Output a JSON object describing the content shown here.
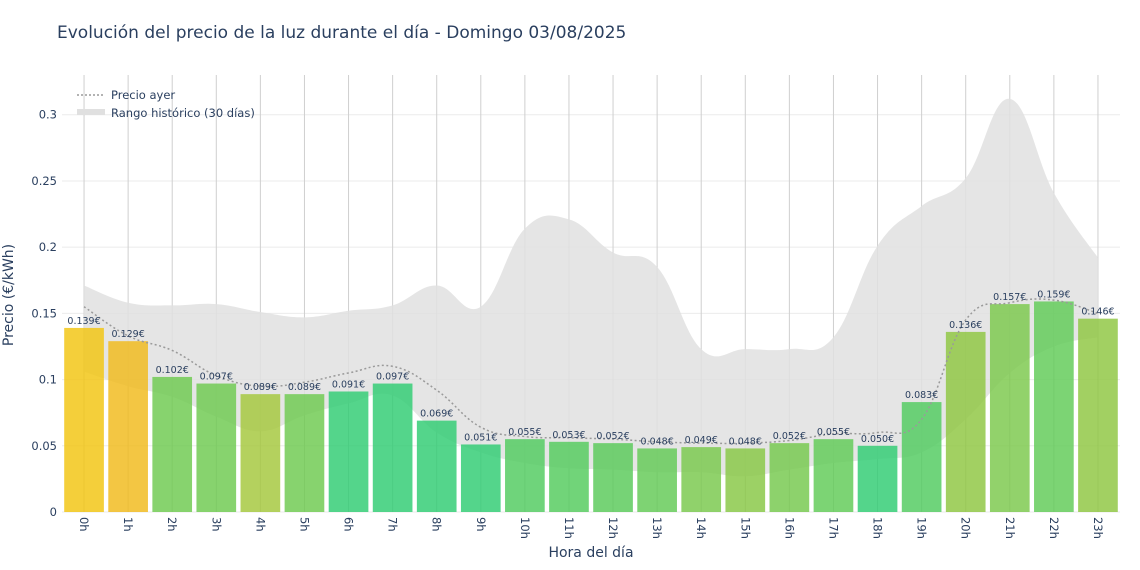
{
  "chart_data": {
    "type": "bar",
    "title": "Evolución del precio de la luz durante el día - Domingo 03/08/2025",
    "xlabel": "Hora del día",
    "ylabel": "Precio (€/kWh)",
    "ylim": [
      0,
      0.33
    ],
    "yticks": [
      0,
      0.05,
      0.1,
      0.15,
      0.2,
      0.25,
      0.3
    ],
    "ytick_labels": [
      "0",
      "0.05",
      "0.1",
      "0.15",
      "0.2",
      "0.25",
      "0.3"
    ],
    "categories": [
      "0h",
      "1h",
      "2h",
      "3h",
      "4h",
      "5h",
      "6h",
      "7h",
      "8h",
      "9h",
      "10h",
      "11h",
      "12h",
      "13h",
      "14h",
      "15h",
      "16h",
      "17h",
      "18h",
      "19h",
      "20h",
      "21h",
      "22h",
      "23h"
    ],
    "values": [
      0.139,
      0.129,
      0.102,
      0.097,
      0.089,
      0.089,
      0.091,
      0.097,
      0.069,
      0.051,
      0.055,
      0.053,
      0.052,
      0.048,
      0.049,
      0.048,
      0.052,
      0.055,
      0.05,
      0.083,
      0.136,
      0.157,
      0.159,
      0.146
    ],
    "value_labels": [
      "0.139€",
      "0.129€",
      "0.102€",
      "0.097€",
      "0.089€",
      "0.089€",
      "0.091€",
      "0.097€",
      "0.069€",
      "0.051€",
      "0.055€",
      "0.053€",
      "0.052€",
      "0.048€",
      "0.049€",
      "0.048€",
      "0.052€",
      "0.055€",
      "0.050€",
      "0.083€",
      "0.136€",
      "0.157€",
      "0.159€",
      "0.146€"
    ],
    "bar_colors": [
      "#f1c40f",
      "#f0b91a",
      "#6cc94e",
      "#6cc94e",
      "#a4c73a",
      "#6cc94e",
      "#2ecc71",
      "#2ecc71",
      "#2ecc71",
      "#2ecc71",
      "#4fca5e",
      "#52ca5c",
      "#58c958",
      "#62c954",
      "#78c84a",
      "#86c743",
      "#74c84c",
      "#5fca56",
      "#2ecc71",
      "#4fca5e",
      "#8ec63f",
      "#7ac84a",
      "#5fca56",
      "#8ec63f"
    ],
    "series": [
      {
        "name": "Precio ayer",
        "style": "dotted",
        "color": "#9a9a9a",
        "values": [
          0.155,
          0.133,
          0.122,
          0.103,
          0.095,
          0.098,
          0.105,
          0.11,
          0.092,
          0.064,
          0.057,
          0.056,
          0.055,
          0.053,
          0.052,
          0.052,
          0.054,
          0.059,
          0.06,
          0.07,
          0.145,
          0.158,
          0.16,
          0.15
        ]
      },
      {
        "name": "Rango histórico (30 días)",
        "style": "band",
        "color": "#e0e0e0",
        "upper": [
          0.171,
          0.158,
          0.156,
          0.157,
          0.151,
          0.147,
          0.152,
          0.156,
          0.171,
          0.155,
          0.214,
          0.221,
          0.196,
          0.185,
          0.123,
          0.123,
          0.123,
          0.132,
          0.201,
          0.231,
          0.252,
          0.312,
          0.241,
          0.192
        ],
        "lower": [
          0.106,
          0.095,
          0.087,
          0.072,
          0.061,
          0.073,
          0.082,
          0.088,
          0.06,
          0.045,
          0.037,
          0.033,
          0.032,
          0.03,
          0.03,
          0.027,
          0.032,
          0.037,
          0.04,
          0.045,
          0.07,
          0.105,
          0.125,
          0.132
        ]
      }
    ],
    "grid": true,
    "legend_position": "top-left"
  }
}
